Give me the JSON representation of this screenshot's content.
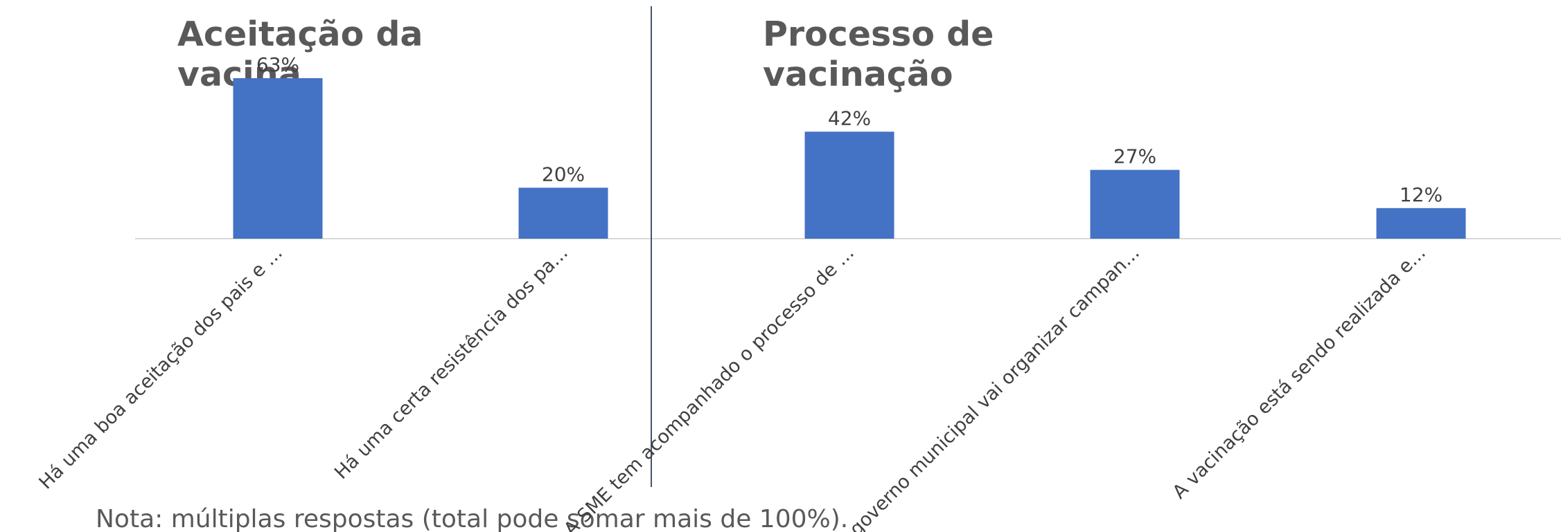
{
  "chart_data": {
    "type": "bar",
    "sections": [
      {
        "title": [
          "Aceitação da",
          "vacina"
        ]
      },
      {
        "title": [
          "Processo de",
          "vacinação"
        ]
      }
    ],
    "categories": [
      "Há uma boa aceitação dos pais e ...",
      "Há uma certa resistência dos pa...",
      "A SME tem acompanhado o processo de ...",
      "O governo municipal vai organizar campan...",
      "A vacinação está sendo realizada e..."
    ],
    "values": [
      63,
      20,
      42,
      27,
      12
    ],
    "value_labels": [
      "63%",
      "20%",
      "42%",
      "27%",
      "12%"
    ],
    "color": "#4472c4",
    "note": "Nota: múltiplas respostas (total pode somar mais de 100%)."
  }
}
